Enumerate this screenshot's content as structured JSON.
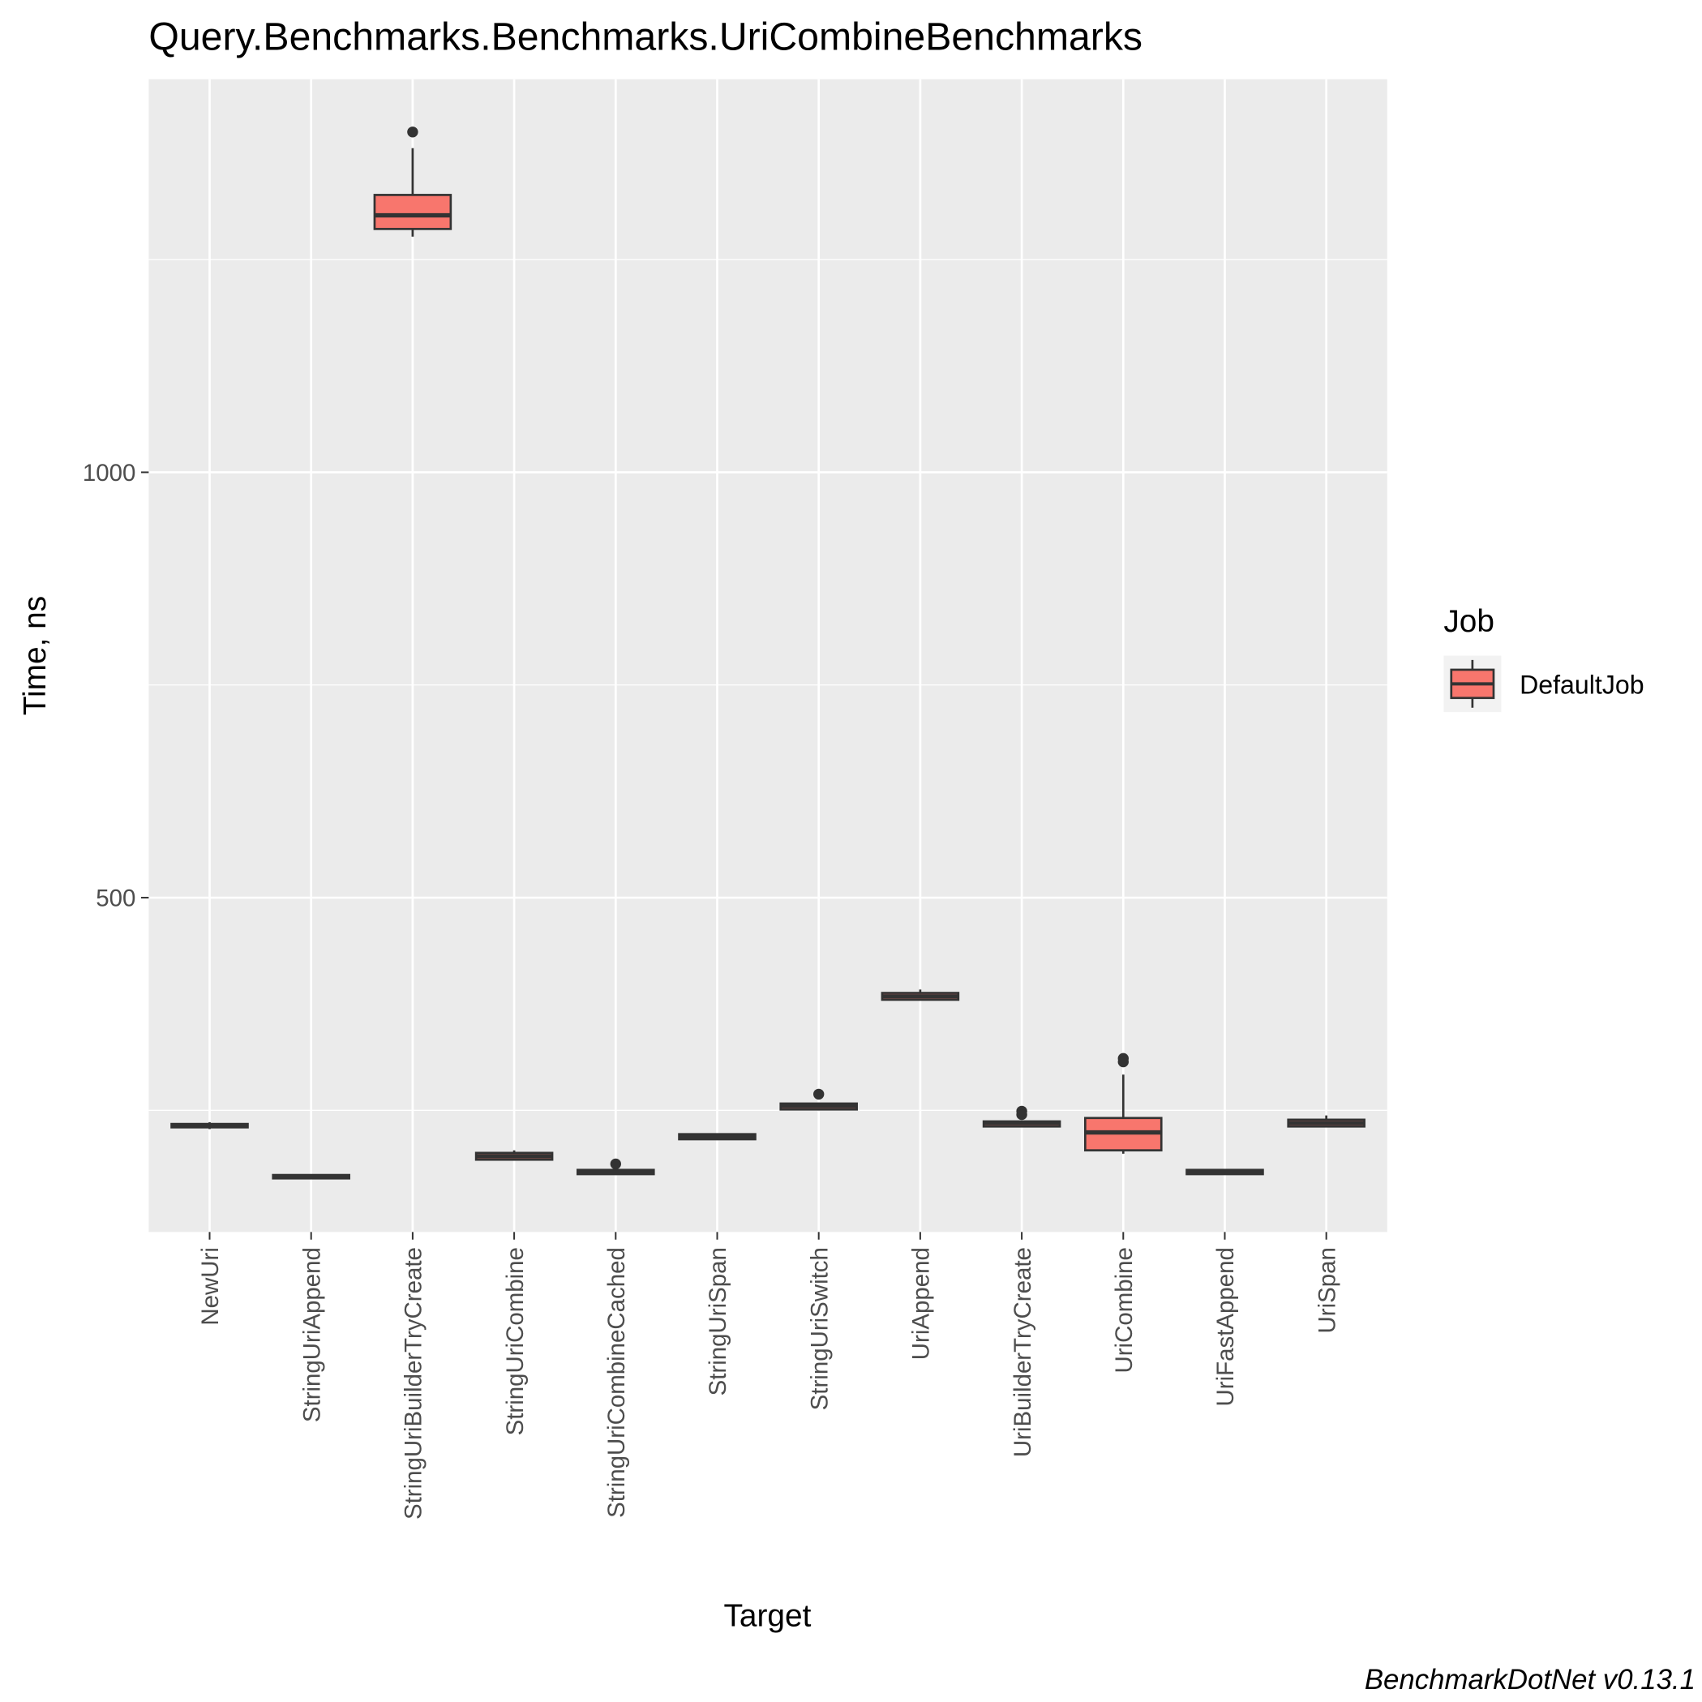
{
  "chart_data": {
    "type": "box",
    "title": "Query.Benchmarks.Benchmarks.UriCombineBenchmarks",
    "x_label": "Target",
    "y_label": "Time, ns",
    "footer": "BenchmarkDotNet v0.13.1",
    "legend_title": "Job",
    "legend": "right",
    "categories": [
      "NewUri",
      "StringUriAppend",
      "StringUriBuilderTryCreate",
      "StringUriCombine",
      "StringUriCombineCached",
      "StringUriSpan",
      "StringUriSwitch",
      "UriAppend",
      "UriBuilderTryCreate",
      "UriCombine",
      "UriFastAppend",
      "UriSpan"
    ],
    "series": [
      {
        "name": "DefaultJob",
        "color": "#F8766D",
        "boxes": [
          {
            "min": 228,
            "q1": 230,
            "median": 232,
            "q3": 234,
            "max": 236
          },
          {
            "min": 169,
            "q1": 170,
            "median": 172,
            "q3": 174,
            "max": 175
          },
          {
            "min": 1277,
            "q1": 1286,
            "median": 1302,
            "q3": 1326,
            "max": 1381,
            "outliers": [
              1400
            ]
          },
          {
            "min": 191,
            "q1": 192,
            "median": 196,
            "q3": 200,
            "max": 203
          },
          {
            "min": 174,
            "q1": 175,
            "median": 177,
            "q3": 180,
            "max": 181,
            "outliers": [
              187
            ]
          },
          {
            "min": 215,
            "q1": 216,
            "median": 219,
            "q3": 222,
            "max": 223
          },
          {
            "min": 250,
            "q1": 251,
            "median": 255,
            "q3": 258,
            "max": 259,
            "outliers": [
              269
            ]
          },
          {
            "min": 379,
            "q1": 380,
            "median": 384,
            "q3": 388,
            "max": 392
          },
          {
            "min": 230,
            "q1": 231,
            "median": 235,
            "q3": 237,
            "max": 238,
            "outliers": [
              249,
              245
            ]
          },
          {
            "min": 199,
            "q1": 203,
            "median": 224,
            "q3": 241,
            "max": 292,
            "outliers": [
              311,
              307
            ]
          },
          {
            "min": 175,
            "q1": 175,
            "median": 177,
            "q3": 180,
            "max": 181
          },
          {
            "min": 230,
            "q1": 231,
            "median": 235,
            "q3": 239,
            "max": 244
          }
        ]
      }
    ],
    "ylim": [
      107,
      1462
    ],
    "yticks": [
      500,
      1000
    ],
    "grid": true,
    "minor_grid": true
  }
}
